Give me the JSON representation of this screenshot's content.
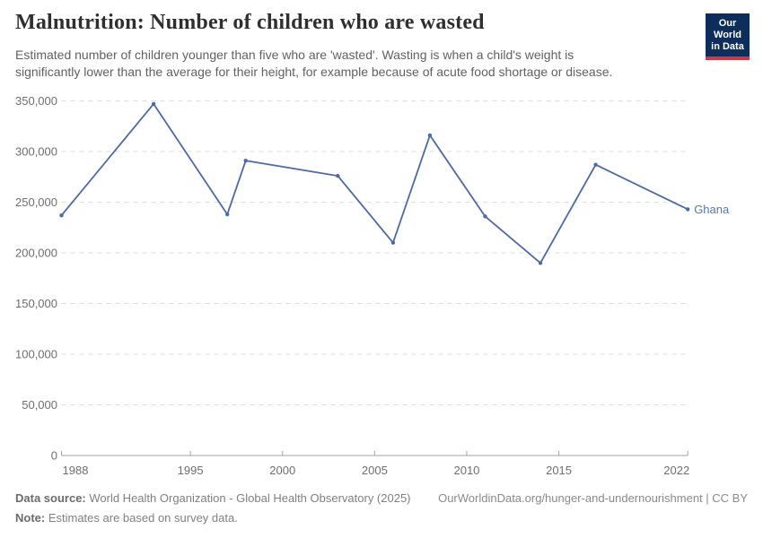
{
  "header": {
    "title": "Malnutrition: Number of children who are wasted",
    "subtitle": "Estimated number of children younger than five who are 'wasted'. Wasting is when a child's weight is\nsignificantly lower than the average for their height, for example because of acute food shortage or disease.",
    "logo": {
      "line1": "Our World",
      "line2": "in Data"
    }
  },
  "footer": {
    "data_source_label": "Data source:",
    "data_source_text": " World Health Organization - Global Health Observatory (2025)",
    "note_label": "Note:",
    "note_text": " Estimates are based on survey data.",
    "link_text": "OurWorldinData.org/hunger-and-undernourishment | CC BY"
  },
  "chart_data": {
    "type": "line",
    "title": "Malnutrition: Number of children who are wasted",
    "xlabel": "",
    "ylabel": "",
    "xlim": [
      1988,
      2022
    ],
    "ylim": [
      0,
      350000
    ],
    "grid": "horizontal-dashed",
    "legend_position": "end-of-line",
    "series": [
      {
        "name": "Ghana",
        "x": [
          1988,
          1993,
          1997,
          1998,
          2003,
          2006,
          2008,
          2011,
          2014,
          2017,
          2022
        ],
        "values": [
          237000,
          347000,
          238000,
          291000,
          276000,
          210000,
          316000,
          236000,
          190000,
          287000,
          243000
        ]
      }
    ],
    "x_ticks": [
      {
        "value": 1988,
        "label": "1988"
      },
      {
        "value": 1995,
        "label": "1995"
      },
      {
        "value": 2000,
        "label": "2000"
      },
      {
        "value": 2005,
        "label": "2005"
      },
      {
        "value": 2010,
        "label": "2010"
      },
      {
        "value": 2015,
        "label": "2015"
      },
      {
        "value": 2022,
        "label": "2022"
      }
    ],
    "y_ticks": [
      {
        "value": 0,
        "label": "0"
      },
      {
        "value": 50000,
        "label": "50,000"
      },
      {
        "value": 100000,
        "label": "100,000"
      },
      {
        "value": 150000,
        "label": "150,000"
      },
      {
        "value": 200000,
        "label": "200,000"
      },
      {
        "value": 250000,
        "label": "250,000"
      },
      {
        "value": 300000,
        "label": "300,000"
      },
      {
        "value": 350000,
        "label": "350,000"
      }
    ],
    "colors": {
      "line": "#4d6aa4",
      "point": "#4d6aa4",
      "series_label": "#5878ab",
      "grid": "#dddddd",
      "axis": "#a3a3a3",
      "tick_label": "#6e6e6e"
    }
  }
}
